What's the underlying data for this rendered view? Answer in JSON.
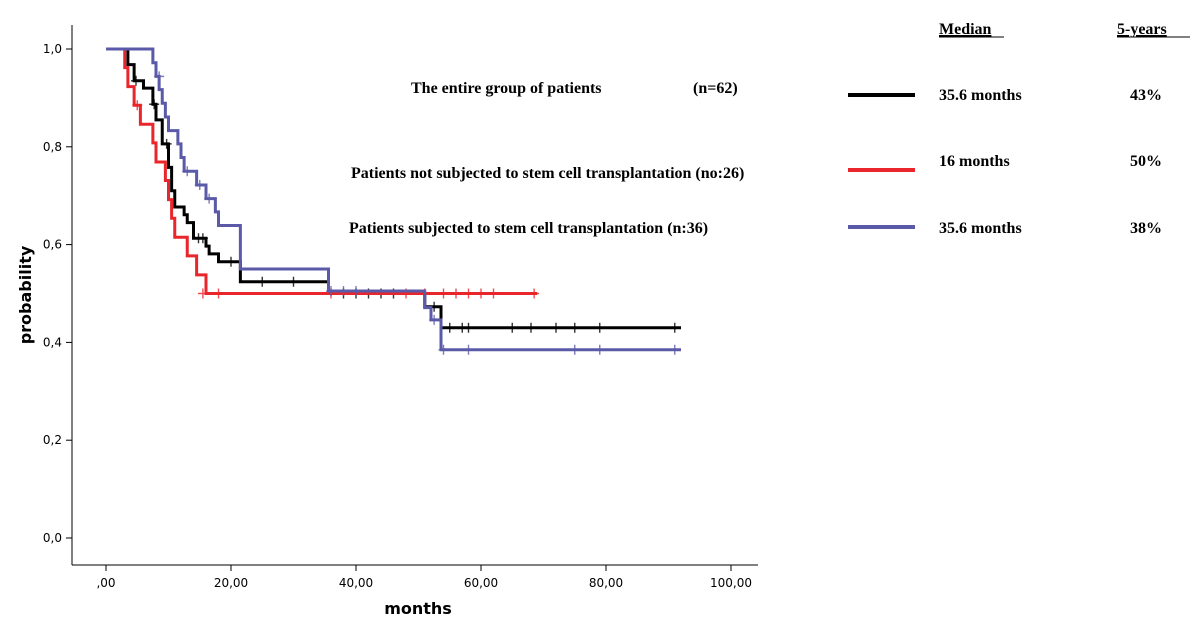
{
  "chart_data": {
    "type": "line",
    "title": "",
    "xlabel": "months",
    "ylabel": "probability",
    "xlim": [
      0,
      100
    ],
    "ylim": [
      0,
      1
    ],
    "x_ticks": [
      ",00",
      "20,00",
      "40,00",
      "60,00",
      "80,00",
      "100,00"
    ],
    "y_ticks": [
      "0,0",
      "0,2",
      "0,4",
      "0,6",
      "0,8",
      "1,0"
    ],
    "annotations": [
      "The entire group of patients",
      "(n=62)",
      "Patients not subjected to stem cell transplantation (no:26)",
      "Patients subjected to stem cell transplantation (n:36)"
    ],
    "legend": {
      "median_header": "Median",
      "five_year_header": "5-years",
      "rows": [
        {
          "median": "35.6 months",
          "five_year": "43%",
          "color": "#000000"
        },
        {
          "median": "16 months",
          "five_year": "50%",
          "color": "#e8262b"
        },
        {
          "median": "35.6 months",
          "five_year": "38%",
          "color": "#5a5aa8"
        }
      ]
    },
    "series": [
      {
        "color": "#000000",
        "steps": [
          [
            0,
            1.0
          ],
          [
            3.5,
            0.968
          ],
          [
            4.5,
            0.935
          ],
          [
            6,
            0.92
          ],
          [
            7.5,
            0.887
          ],
          [
            8,
            0.855
          ],
          [
            9,
            0.806
          ],
          [
            10,
            0.758
          ],
          [
            10.5,
            0.71
          ],
          [
            11,
            0.677
          ],
          [
            12.5,
            0.661
          ],
          [
            13,
            0.645
          ],
          [
            14,
            0.613
          ],
          [
            16,
            0.597
          ],
          [
            16.5,
            0.581
          ],
          [
            18,
            0.565
          ],
          [
            21.5,
            0.524
          ],
          [
            35.6,
            0.5
          ],
          [
            51,
            0.473
          ],
          [
            53.6,
            0.43
          ],
          [
            92,
            0.43
          ]
        ],
        "censors": [
          [
            4.8,
            0.935
          ],
          [
            7.7,
            0.887
          ],
          [
            9.7,
            0.806
          ],
          [
            14.8,
            0.613
          ],
          [
            15.5,
            0.613
          ],
          [
            20,
            0.565
          ],
          [
            25,
            0.524
          ],
          [
            30,
            0.524
          ],
          [
            38,
            0.5
          ],
          [
            40,
            0.5
          ],
          [
            42,
            0.5
          ],
          [
            44,
            0.5
          ],
          [
            46,
            0.5
          ],
          [
            52.5,
            0.473
          ],
          [
            55,
            0.43
          ],
          [
            57,
            0.43
          ],
          [
            58,
            0.43
          ],
          [
            65,
            0.43
          ],
          [
            68,
            0.43
          ],
          [
            72,
            0.43
          ],
          [
            75,
            0.43
          ],
          [
            79,
            0.43
          ],
          [
            91,
            0.43
          ]
        ]
      },
      {
        "color": "#e8262b",
        "steps": [
          [
            0,
            1.0
          ],
          [
            3,
            0.962
          ],
          [
            3.5,
            0.923
          ],
          [
            4.5,
            0.885
          ],
          [
            5.5,
            0.846
          ],
          [
            7.5,
            0.808
          ],
          [
            8,
            0.769
          ],
          [
            9.5,
            0.731
          ],
          [
            10,
            0.692
          ],
          [
            10.5,
            0.654
          ],
          [
            11,
            0.615
          ],
          [
            13,
            0.577
          ],
          [
            14.5,
            0.538
          ],
          [
            16,
            0.5
          ],
          [
            69,
            0.5
          ]
        ],
        "censors": [
          [
            5,
            0.885
          ],
          [
            15.5,
            0.5
          ],
          [
            18,
            0.5
          ],
          [
            36,
            0.5
          ],
          [
            48,
            0.5
          ],
          [
            51,
            0.5
          ],
          [
            54,
            0.5
          ],
          [
            56,
            0.5
          ],
          [
            58,
            0.5
          ],
          [
            60,
            0.5
          ],
          [
            62,
            0.5
          ],
          [
            68.5,
            0.5
          ]
        ]
      },
      {
        "color": "#5a5aa8",
        "steps": [
          [
            0,
            1.0
          ],
          [
            7.5,
            0.972
          ],
          [
            8,
            0.944
          ],
          [
            8.5,
            0.917
          ],
          [
            9,
            0.889
          ],
          [
            9.5,
            0.861
          ],
          [
            10,
            0.833
          ],
          [
            11.5,
            0.806
          ],
          [
            12,
            0.778
          ],
          [
            12.5,
            0.75
          ],
          [
            14.5,
            0.722
          ],
          [
            16,
            0.694
          ],
          [
            17.5,
            0.667
          ],
          [
            18,
            0.639
          ],
          [
            21.5,
            0.55
          ],
          [
            35.6,
            0.505
          ],
          [
            51,
            0.471
          ],
          [
            52,
            0.446
          ],
          [
            53.6,
            0.385
          ],
          [
            92,
            0.385
          ]
        ],
        "censors": [
          [
            8.5,
            0.944
          ],
          [
            13,
            0.75
          ],
          [
            15,
            0.722
          ],
          [
            16.5,
            0.694
          ],
          [
            36,
            0.505
          ],
          [
            38,
            0.505
          ],
          [
            40,
            0.505
          ],
          [
            52.5,
            0.446
          ],
          [
            54,
            0.385
          ],
          [
            58,
            0.385
          ],
          [
            75,
            0.385
          ],
          [
            79,
            0.385
          ],
          [
            91,
            0.385
          ]
        ]
      }
    ]
  }
}
